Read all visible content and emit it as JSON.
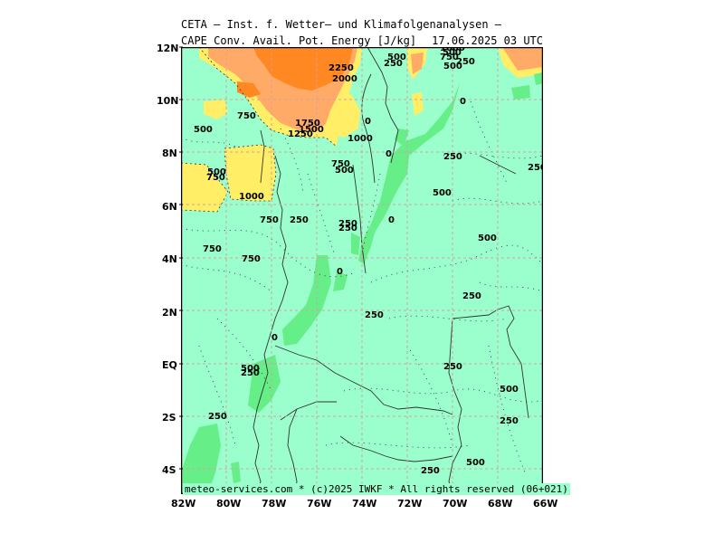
{
  "header": {
    "line1": "CETA — Inst. f. Wetter— und Klimafolgenanalysen —",
    "parameter": "CAPE Conv. Avail. Pot. Energy [J/kg]",
    "valid": "17.06.2025 03 UTC"
  },
  "lat_labels": [
    "12N",
    "10N",
    "8N",
    "6N",
    "4N",
    "2N",
    "EQ",
    "2S",
    "4S"
  ],
  "lon_labels": [
    "82W",
    "80W",
    "78W",
    "76W",
    "74W",
    "72W",
    "70W",
    "68W",
    "66W"
  ],
  "contour_labels": [
    "2250",
    "2000",
    "1750",
    "1500",
    "1250",
    "1000",
    "750",
    "500",
    "250",
    "0",
    "1000",
    "500",
    "250",
    "750",
    "500",
    "750",
    "1000",
    "750",
    "250",
    "500",
    "250",
    "750",
    "750",
    "0",
    "0",
    "250",
    "500",
    "500",
    "250",
    "0",
    "500",
    "250",
    "0",
    "0",
    "250",
    "250",
    "250",
    "250",
    "250",
    "500",
    "500",
    "750",
    "250",
    "500",
    "500",
    "250"
  ],
  "footer": "meteo-services.com * (c)2025 IWKF * All rights reserved (06+021)",
  "colors": {
    "background": "#9affcc",
    "band_0_250": "#66ee88",
    "band_1000": "#ffee66",
    "band_1500": "#ffaa66",
    "band_2000": "#ff8822",
    "grid": "#d4a0a0"
  }
}
